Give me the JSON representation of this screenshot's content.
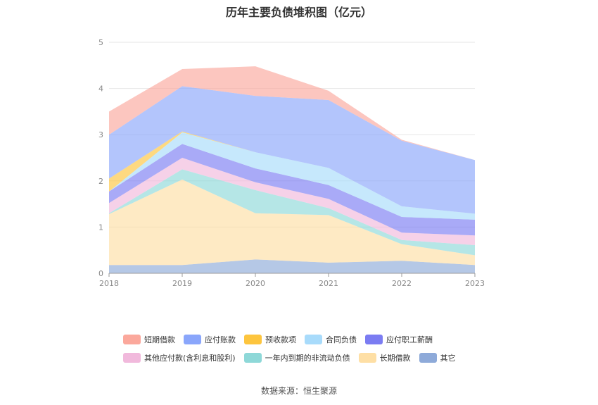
{
  "chart_data": {
    "type": "area",
    "stacked": true,
    "title": "历年主要负债堆积图（亿元）",
    "x": [
      "2018",
      "2019",
      "2020",
      "2021",
      "2022",
      "2023"
    ],
    "ylim": [
      0,
      5
    ],
    "yticks": [
      "0",
      "1",
      "2",
      "3",
      "4",
      "5"
    ],
    "grid": true,
    "legend_position": "bottom",
    "series": [
      {
        "name": "其它",
        "color": "#8eaad9",
        "values": [
          0.18,
          0.18,
          0.3,
          0.23,
          0.27,
          0.18
        ]
      },
      {
        "name": "长期借款",
        "color": "#fedfa5",
        "values": [
          1.1,
          1.85,
          1.0,
          1.03,
          0.36,
          0.21
        ]
      },
      {
        "name": "一年内到期的非流动负债",
        "color": "#8ed8d8",
        "values": [
          0.02,
          0.22,
          0.5,
          0.15,
          0.09,
          0.22
        ]
      },
      {
        "name": "其他应付款(含利息和股利)",
        "color": "#f1b9dc",
        "values": [
          0.22,
          0.25,
          0.17,
          0.2,
          0.16,
          0.21
        ]
      },
      {
        "name": "应付职工薪酬",
        "color": "#7b7cf2",
        "values": [
          0.25,
          0.3,
          0.3,
          0.3,
          0.34,
          0.34
        ]
      },
      {
        "name": "合同负债",
        "color": "#a8dbfb",
        "values": [
          0,
          0.25,
          0.35,
          0.37,
          0.23,
          0.13
        ]
      },
      {
        "name": "预收款项",
        "color": "#fdc53e",
        "values": [
          0.28,
          0.02,
          0,
          0,
          0,
          0
        ]
      },
      {
        "name": "应付账款",
        "color": "#8aa6fb",
        "values": [
          0.95,
          0.98,
          1.22,
          1.47,
          1.42,
          1.16
        ]
      },
      {
        "name": "短期借款",
        "color": "#fba89c",
        "values": [
          0.5,
          0.37,
          0.64,
          0.2,
          0.02,
          0
        ]
      }
    ]
  },
  "legend_rows": [
    [
      "短期借款",
      "应付账款",
      "预收款项",
      "合同负债",
      "应付职工薪酬"
    ],
    [
      "其他应付款(含利息和股利)",
      "一年内到期的非流动负债",
      "长期借款",
      "其它"
    ]
  ],
  "source": "数据来源：恒生聚源"
}
